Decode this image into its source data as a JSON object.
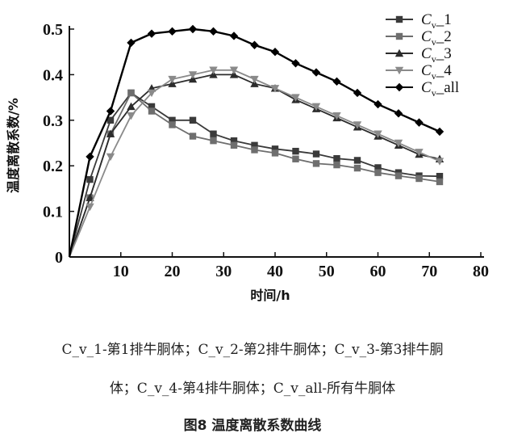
{
  "chart_data": {
    "type": "line",
    "xlabel": "时间/h",
    "ylabel": "温度离散系数/%",
    "xlim": [
      0,
      80
    ],
    "ylim": [
      0,
      0.5
    ],
    "x_ticks": [
      "0",
      "10",
      "20",
      "30",
      "40",
      "50",
      "60",
      "70",
      "80"
    ],
    "y_ticks": [
      "0",
      "0.1",
      "0.2",
      "0.3",
      "0.4",
      "0.5"
    ],
    "grid": false,
    "legend": "top-right",
    "x": [
      0,
      4,
      8,
      12,
      16,
      20,
      24,
      28,
      32,
      36,
      40,
      44,
      48,
      52,
      56,
      60,
      64,
      68,
      72
    ],
    "series": [
      {
        "name": "C_v_1",
        "marker": "square",
        "values": [
          0,
          0.17,
          0.3,
          0.36,
          0.33,
          0.3,
          0.3,
          0.27,
          0.255,
          0.245,
          0.237,
          0.232,
          0.226,
          0.216,
          0.212,
          0.196,
          0.185,
          0.178,
          0.177
        ]
      },
      {
        "name": "C_v_2",
        "marker": "square",
        "values": [
          0,
          0.13,
          0.27,
          0.36,
          0.32,
          0.29,
          0.265,
          0.255,
          0.245,
          0.235,
          0.228,
          0.215,
          0.205,
          0.202,
          0.195,
          0.185,
          0.178,
          0.172,
          0.165
        ]
      },
      {
        "name": "C_v_3",
        "marker": "triangle-up",
        "values": [
          0,
          0.13,
          0.27,
          0.33,
          0.37,
          0.38,
          0.39,
          0.4,
          0.4,
          0.38,
          0.37,
          0.345,
          0.325,
          0.305,
          0.285,
          0.265,
          0.245,
          0.225,
          0.215
        ]
      },
      {
        "name": "C_v_4",
        "marker": "triangle-down",
        "values": [
          0,
          0.11,
          0.22,
          0.31,
          0.36,
          0.39,
          0.4,
          0.41,
          0.41,
          0.39,
          0.37,
          0.35,
          0.33,
          0.31,
          0.29,
          0.27,
          0.25,
          0.23,
          0.21
        ]
      },
      {
        "name": "C_v_all",
        "marker": "diamond",
        "values": [
          0,
          0.22,
          0.32,
          0.47,
          0.49,
          0.495,
          0.5,
          0.495,
          0.485,
          0.465,
          0.45,
          0.425,
          0.405,
          0.385,
          0.36,
          0.335,
          0.315,
          0.295,
          0.275
        ]
      }
    ],
    "legend_labels": [
      "1",
      "2",
      "3",
      "4",
      "all"
    ]
  },
  "caption": {
    "line1": "C_v_1-第1排牛胴体；C_v_2-第2排牛胴体；C_v_3-第3排牛胴",
    "line2": "体；C_v_4-第4排牛胴体；C_v_all-所有牛胴体",
    "figure_title": "图8  温度离散系数曲线"
  },
  "colors": {
    "C_v_1": "#3a3a3a",
    "C_v_2": "#6e6e6e",
    "C_v_3": "#2c2c2c",
    "C_v_4": "#8a8a8a",
    "C_v_all": "#000000"
  }
}
